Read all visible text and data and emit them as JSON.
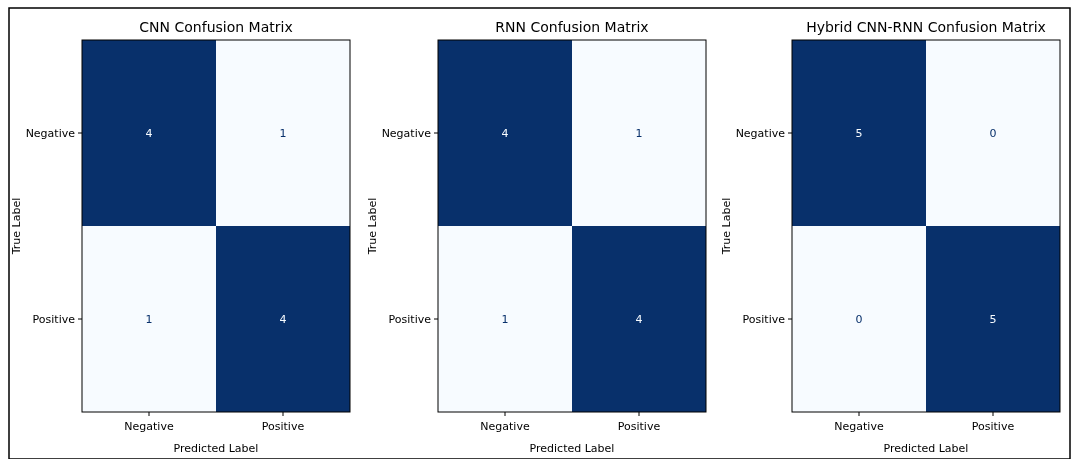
{
  "chart_data": [
    {
      "type": "heatmap",
      "title": "CNN Confusion Matrix",
      "xlabel": "Predicted Label",
      "ylabel": "True Label",
      "categories": [
        "Negative",
        "Positive"
      ],
      "y_categories": [
        "Negative",
        "Positive"
      ],
      "cells": [
        [
          4,
          1
        ],
        [
          1,
          4
        ]
      ],
      "colors": [
        "#f7fbff",
        "#08306b"
      ],
      "data_labels": true
    },
    {
      "type": "heatmap",
      "title": "RNN Confusion Matrix",
      "xlabel": "Predicted Label",
      "ylabel": "True Label",
      "categories": [
        "Negative",
        "Positive"
      ],
      "y_categories": [
        "Negative",
        "Positive"
      ],
      "cells": [
        [
          4,
          1
        ],
        [
          1,
          4
        ]
      ],
      "colors": [
        "#f7fbff",
        "#08306b"
      ],
      "data_labels": true
    },
    {
      "type": "heatmap",
      "title": "Hybrid CNN-RNN Confusion Matrix",
      "xlabel": "Predicted Label",
      "ylabel": "True Label",
      "categories": [
        "Negative",
        "Positive"
      ],
      "y_categories": [
        "Negative",
        "Positive"
      ],
      "cells": [
        [
          5,
          0
        ],
        [
          0,
          5
        ]
      ],
      "colors": [
        "#f7fbff",
        "#08306b"
      ],
      "data_labels": true
    }
  ]
}
